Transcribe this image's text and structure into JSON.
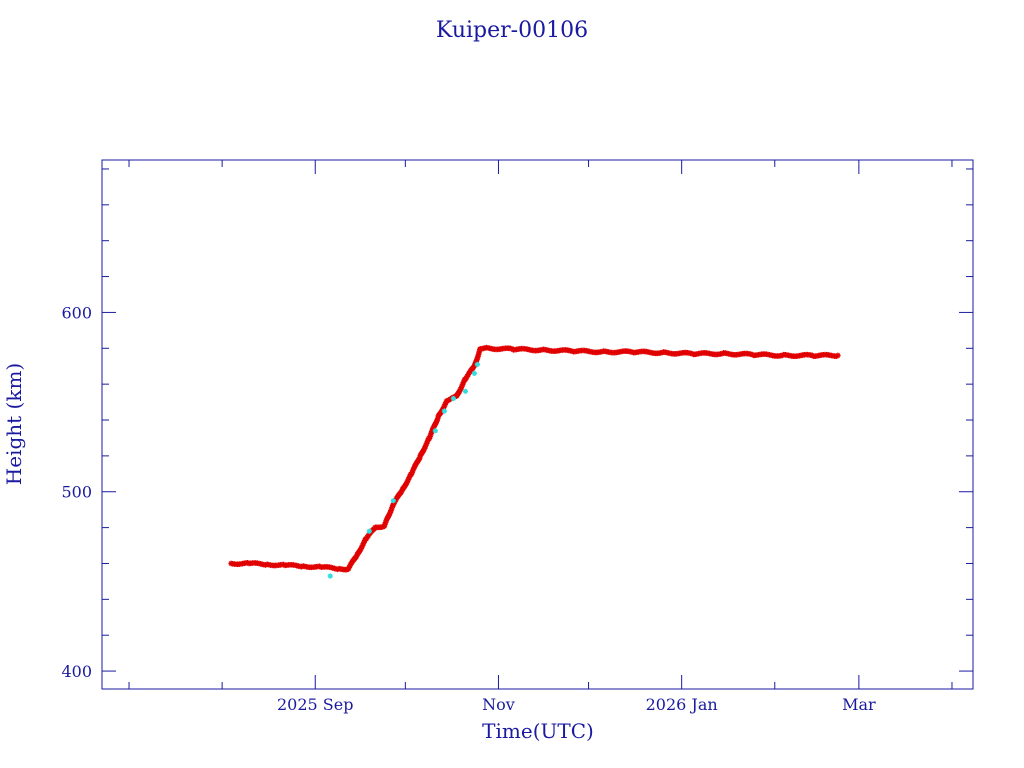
{
  "chart_data": {
    "type": "scatter",
    "title": "Kuiper-00106",
    "xlabel": "Time(UTC)",
    "ylabel": "Height (km)",
    "x_axis_type": "date",
    "xlim": [
      "2025-06-22",
      "2026-04-08"
    ],
    "ylim": [
      390,
      685
    ],
    "x_tick_labels": [
      {
        "date": "2025-09-01",
        "label": "2025 Sep"
      },
      {
        "date": "2025-11-01",
        "label": "Nov"
      },
      {
        "date": "2026-01-01",
        "label": "2026 Jan"
      },
      {
        "date": "2026-03-01",
        "label": "Mar"
      }
    ],
    "y_ticks": [
      400,
      500,
      600
    ],
    "grid": false,
    "colors": {
      "axis": "#1a1aa0",
      "primary_points": "#e00000",
      "secondary_points": "#33dddd"
    },
    "series": [
      {
        "color": "#e00000",
        "marker": "asterisk",
        "x": [
          "2025-08-04",
          "2025-08-10",
          "2025-08-16",
          "2025-08-22",
          "2025-08-28",
          "2025-09-03",
          "2025-09-09",
          "2025-09-12",
          "2025-09-15",
          "2025-09-18",
          "2025-09-21",
          "2025-09-24",
          "2025-09-25",
          "2025-09-27",
          "2025-09-30",
          "2025-10-03",
          "2025-10-06",
          "2025-10-09",
          "2025-10-12",
          "2025-10-15",
          "2025-10-18",
          "2025-10-21",
          "2025-10-24",
          "2025-10-26",
          "2025-10-28",
          "2025-11-06",
          "2025-11-16",
          "2025-11-26",
          "2025-12-06",
          "2025-12-16",
          "2025-12-26",
          "2026-01-05",
          "2026-01-15",
          "2026-01-25",
          "2026-02-04",
          "2026-02-14",
          "2026-02-22"
        ],
        "y": [
          460,
          460,
          459.5,
          459,
          458.5,
          458,
          457,
          457,
          465,
          474,
          480,
          481,
          485,
          493,
          501,
          510,
          520,
          530,
          542,
          551,
          553,
          563,
          570,
          580,
          580,
          579.5,
          579,
          578.5,
          578,
          578,
          577.5,
          577,
          577,
          576.5,
          576,
          576,
          576
        ]
      },
      {
        "color": "#33dddd",
        "marker": "asterisk",
        "x": [
          "2025-09-06",
          "2025-09-19",
          "2025-09-27",
          "2025-10-11",
          "2025-10-14",
          "2025-10-17",
          "2025-10-21",
          "2025-10-24",
          "2025-10-25"
        ],
        "y": [
          453,
          478,
          495,
          534,
          545,
          552,
          556,
          566,
          571
        ]
      }
    ]
  }
}
